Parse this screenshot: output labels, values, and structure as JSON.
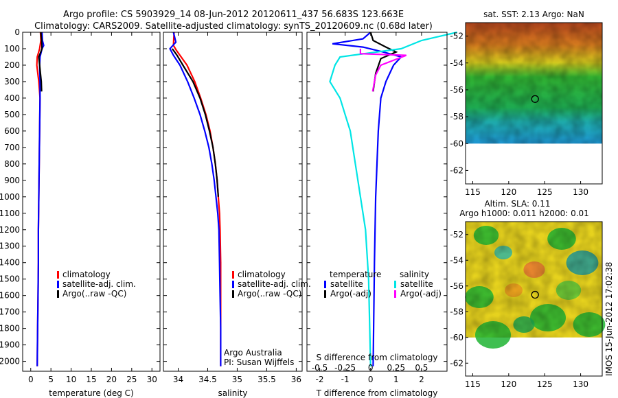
{
  "header": {
    "line1": "Argo profile: CS 5903929_14 08-Jun-2012 20120611_437 56.683S 123.663E",
    "line2": "Climatology: CARS2009. Satellite-adjusted climatology: synTS_20120609.nc (0.68d later)"
  },
  "footer": {
    "stamp": "IMOS 15-Jun-2012 17:02:38"
  },
  "colors": {
    "climatology": "#ff0000",
    "satellite": "#0000ff",
    "argo": "#000000",
    "salinity_satellite": "#00e5e5",
    "salinity_argo": "#ff00ff"
  },
  "chart_data": [
    {
      "type": "line",
      "panel": "temperature",
      "xlabel": "temperature (deg C)",
      "ylabel": "",
      "xlim": [
        -2,
        32
      ],
      "ylim": [
        2060,
        0
      ],
      "xticks": [
        0,
        5,
        10,
        15,
        20,
        25,
        30
      ],
      "yticks": [
        0,
        100,
        200,
        300,
        400,
        500,
        600,
        700,
        800,
        900,
        1000,
        1100,
        1200,
        1300,
        1400,
        1500,
        1600,
        1700,
        1800,
        1900,
        2000
      ],
      "legend": [
        "climatology",
        "satellite-adj. clim.",
        "Argo(..raw -QC)"
      ],
      "series": [
        {
          "name": "climatology",
          "color": "#ff0000",
          "points": [
            [
              2.4,
              0
            ],
            [
              2.5,
              50
            ],
            [
              2.2,
              100
            ],
            [
              1.6,
              150
            ],
            [
              1.5,
              200
            ],
            [
              2.0,
              300
            ],
            [
              2.3,
              400
            ],
            [
              2.2,
              600
            ],
            [
              2.1,
              800
            ],
            [
              2.0,
              1000
            ],
            [
              1.9,
              1200
            ],
            [
              1.9,
              1400
            ],
            [
              1.8,
              1600
            ],
            [
              1.7,
              1800
            ],
            [
              1.6,
              2030
            ]
          ]
        },
        {
          "name": "satellite-adj. clim.",
          "color": "#0000ff",
          "points": [
            [
              2.8,
              0
            ],
            [
              2.9,
              50
            ],
            [
              3.2,
              80
            ],
            [
              2.8,
              100
            ],
            [
              2.3,
              150
            ],
            [
              2.2,
              200
            ],
            [
              2.3,
              300
            ],
            [
              2.3,
              400
            ],
            [
              2.2,
              600
            ],
            [
              2.1,
              800
            ],
            [
              2.0,
              1000
            ],
            [
              1.9,
              1200
            ],
            [
              1.9,
              1400
            ],
            [
              1.8,
              1600
            ],
            [
              1.7,
              1800
            ],
            [
              1.6,
              2030
            ]
          ]
        },
        {
          "name": "Argo(..raw -QC)",
          "color": "#000000",
          "points": [
            [
              2.5,
              0
            ],
            [
              2.7,
              50
            ],
            [
              2.8,
              100
            ],
            [
              2.0,
              150
            ],
            [
              2.2,
              200
            ],
            [
              2.6,
              300
            ],
            [
              2.7,
              360
            ]
          ]
        }
      ]
    },
    {
      "type": "line",
      "panel": "salinity",
      "xlabel": "salinity",
      "ylabel": "",
      "xlim": [
        33.75,
        36.1
      ],
      "ylim": [
        2060,
        0
      ],
      "xticks": [
        34,
        34.5,
        35,
        35.5,
        36
      ],
      "legend": [
        "climatology",
        "satellite-adj. clim.",
        "Argo(..raw -QC)"
      ],
      "annotation": [
        "Argo Australia",
        "PI: Susan Wijffels"
      ],
      "series": [
        {
          "name": "climatology",
          "color": "#ff0000",
          "points": [
            [
              33.93,
              0
            ],
            [
              33.92,
              80
            ],
            [
              33.97,
              110
            ],
            [
              34.05,
              150
            ],
            [
              34.15,
              200
            ],
            [
              34.28,
              300
            ],
            [
              34.38,
              400
            ],
            [
              34.47,
              500
            ],
            [
              34.54,
              600
            ],
            [
              34.59,
              700
            ],
            [
              34.63,
              800
            ],
            [
              34.66,
              900
            ],
            [
              34.68,
              1000
            ],
            [
              34.7,
              1100
            ],
            [
              34.71,
              1200
            ],
            [
              34.72,
              1400
            ],
            [
              34.72,
              1600
            ],
            [
              34.72,
              1800
            ],
            [
              34.72,
              2030
            ]
          ]
        },
        {
          "name": "satellite-adj. clim.",
          "color": "#0000ff",
          "points": [
            [
              33.92,
              0
            ],
            [
              33.96,
              60
            ],
            [
              33.86,
              100
            ],
            [
              33.92,
              140
            ],
            [
              34.03,
              200
            ],
            [
              34.16,
              300
            ],
            [
              34.27,
              400
            ],
            [
              34.37,
              500
            ],
            [
              34.45,
              600
            ],
            [
              34.52,
              700
            ],
            [
              34.57,
              800
            ],
            [
              34.61,
              900
            ],
            [
              34.64,
              1000
            ],
            [
              34.67,
              1100
            ],
            [
              34.69,
              1200
            ],
            [
              34.7,
              1400
            ],
            [
              34.71,
              1600
            ],
            [
              34.72,
              1800
            ],
            [
              34.72,
              2030
            ]
          ]
        },
        {
          "name": "Argo(..raw -QC)",
          "color": "#000000",
          "points": [
            [
              33.9,
              100
            ],
            [
              33.98,
              140
            ],
            [
              34.08,
              200
            ],
            [
              34.25,
              300
            ],
            [
              34.37,
              400
            ],
            [
              34.46,
              500
            ],
            [
              34.53,
              600
            ],
            [
              34.59,
              700
            ],
            [
              34.63,
              800
            ],
            [
              34.66,
              900
            ],
            [
              34.68,
              1000
            ]
          ]
        }
      ]
    },
    {
      "type": "line",
      "panel": "difference",
      "xlabel": "T difference from climatology",
      "xlabel_top": "S difference from climatology",
      "xlim": [
        -2.5,
        3.0
      ],
      "xlim_salinity": [
        -0.625,
        0.75
      ],
      "ylim": [
        2060,
        0
      ],
      "xticks": [
        -2,
        -1,
        0,
        1,
        2
      ],
      "xticks_salinity": [
        -0.5,
        -0.25,
        0,
        0.25,
        0.5
      ],
      "legend_temperature_title": "temperature",
      "legend_salinity_title": "salinity",
      "legend_temperature": [
        "satellite",
        "Argo(-adj)"
      ],
      "legend_salinity": [
        "satellite",
        "Argo(-adj)"
      ],
      "series": [
        {
          "name": "satellite",
          "group": "temperature",
          "color": "#0000ff",
          "points": [
            [
              0,
              0
            ],
            [
              -0.3,
              40
            ],
            [
              -1.5,
              70
            ],
            [
              -0.3,
              90
            ],
            [
              0.5,
              120
            ],
            [
              1.2,
              150
            ],
            [
              0.9,
              200
            ],
            [
              0.6,
              300
            ],
            [
              0.4,
              400
            ],
            [
              0.3,
              600
            ],
            [
              0.2,
              1000
            ],
            [
              0.15,
              1400
            ],
            [
              0.1,
              2030
            ]
          ]
        },
        {
          "name": "Argo(-adj)",
          "group": "temperature",
          "color": "#000000",
          "points": [
            [
              0,
              0
            ],
            [
              0.1,
              50
            ],
            [
              0.6,
              90
            ],
            [
              1.0,
              120
            ],
            [
              0.4,
              160
            ],
            [
              0.2,
              250
            ],
            [
              0.1,
              360
            ]
          ]
        },
        {
          "name": "satellite",
          "group": "salinity",
          "color": "#00e5e5",
          "points": [
            [
              0.85,
              0
            ],
            [
              0.5,
              50
            ],
            [
              0.3,
              100
            ],
            [
              -0.3,
              150
            ],
            [
              -0.35,
              200
            ],
            [
              -0.4,
              300
            ],
            [
              -0.3,
              400
            ],
            [
              -0.25,
              500
            ],
            [
              -0.2,
              600
            ],
            [
              -0.15,
              800
            ],
            [
              -0.1,
              1000
            ],
            [
              -0.05,
              1200
            ],
            [
              -0.02,
              1500
            ],
            [
              0,
              2030
            ]
          ]
        },
        {
          "name": "Argo(-adj)",
          "group": "salinity",
          "color": "#ff00ff",
          "points": [
            [
              -0.1,
              100
            ],
            [
              -0.1,
              130
            ],
            [
              0.35,
              140
            ],
            [
              0.1,
              200
            ],
            [
              0.05,
              260
            ],
            [
              0.02,
              360
            ]
          ]
        }
      ]
    },
    {
      "type": "heatmap",
      "panel": "sst-map",
      "title": "sat. SST: 2.13  Argo: NaN",
      "xlim": [
        114,
        133
      ],
      "ylim": [
        -63,
        -51
      ],
      "xticks": [
        115,
        120,
        125,
        130
      ],
      "yticks": [
        -52,
        -54,
        -56,
        -58,
        -60,
        -62
      ],
      "marker": [
        123.663,
        -56.683
      ]
    },
    {
      "type": "heatmap",
      "panel": "sla-map",
      "title": "Altim. SLA: 0.11",
      "subtitle": "Argo h1000: 0.011  h2000: 0.01",
      "xlim": [
        114,
        133
      ],
      "ylim": [
        -63,
        -51
      ],
      "xticks": [
        115,
        120,
        125,
        130
      ],
      "yticks": [
        -52,
        -54,
        -56,
        -58,
        -60,
        -62
      ],
      "marker": [
        123.663,
        -56.683
      ]
    }
  ]
}
